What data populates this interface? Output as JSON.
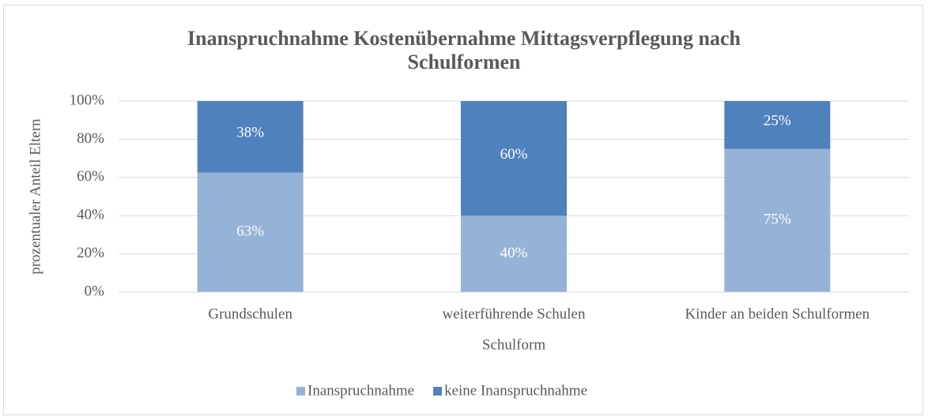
{
  "chart_data": {
    "type": "stacked_bar",
    "title": "Inanspruchnahme Kostenübernahme Mittagsverpflegung nach Schulformen",
    "categories": [
      "Grundschulen",
      "weiterführende Schulen",
      "Kinder an beiden Schulformen"
    ],
    "series": [
      {
        "name": "Inanspruchnahme",
        "color": "#95b3d7",
        "values": [
          62.5,
          40,
          75
        ],
        "value_labels": [
          "63%",
          "40%",
          "75%"
        ]
      },
      {
        "name": "keine Inanspruchnahme",
        "color": "#4f81bd",
        "values": [
          37.5,
          60,
          25
        ],
        "value_labels": [
          "38%",
          "60%",
          "25%"
        ]
      }
    ],
    "ylim": [
      0,
      100
    ],
    "yticks": [
      {
        "value": 0,
        "label": "0%"
      },
      {
        "value": 20,
        "label": "20%"
      },
      {
        "value": 40,
        "label": "40%"
      },
      {
        "value": 60,
        "label": "60%"
      },
      {
        "value": 80,
        "label": "80%"
      },
      {
        "value": 100,
        "label": "100%"
      }
    ],
    "ylabel": "prozentualer Anteil Eltern",
    "xlabel": "Schulform",
    "grid": true,
    "legend": "bottom"
  }
}
